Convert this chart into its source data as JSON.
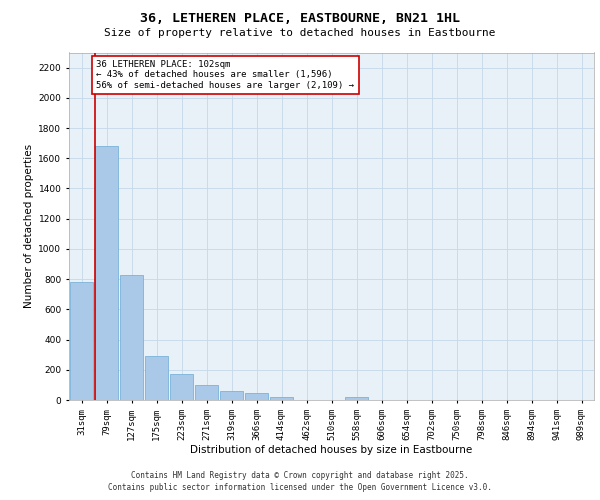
{
  "title_line1": "36, LETHEREN PLACE, EASTBOURNE, BN21 1HL",
  "title_line2": "Size of property relative to detached houses in Eastbourne",
  "xlabel": "Distribution of detached houses by size in Eastbourne",
  "ylabel": "Number of detached properties",
  "categories": [
    "31sqm",
    "79sqm",
    "127sqm",
    "175sqm",
    "223sqm",
    "271sqm",
    "319sqm",
    "366sqm",
    "414sqm",
    "462sqm",
    "510sqm",
    "558sqm",
    "606sqm",
    "654sqm",
    "702sqm",
    "750sqm",
    "798sqm",
    "846sqm",
    "894sqm",
    "941sqm",
    "989sqm"
  ],
  "values": [
    780,
    1680,
    830,
    290,
    170,
    100,
    60,
    45,
    18,
    0,
    0,
    18,
    0,
    0,
    0,
    0,
    0,
    0,
    0,
    0,
    0
  ],
  "bar_color": "#aac9e8",
  "bar_edge_color": "#6aaad4",
  "grid_color": "#c5d9ea",
  "background_color": "#e8f0f8",
  "annotation_text": "36 LETHEREN PLACE: 102sqm\n← 43% of detached houses are smaller (1,596)\n56% of semi-detached houses are larger (2,109) →",
  "annotation_box_color": "#ffffff",
  "annotation_box_edge": "#cc0000",
  "vline_color": "#cc0000",
  "vline_x_index": 1,
  "ylim": [
    0,
    2300
  ],
  "yticks": [
    0,
    200,
    400,
    600,
    800,
    1000,
    1200,
    1400,
    1600,
    1800,
    2000,
    2200
  ],
  "footer_line1": "Contains HM Land Registry data © Crown copyright and database right 2025.",
  "footer_line2": "Contains public sector information licensed under the Open Government Licence v3.0.",
  "title_fontsize": 9.5,
  "subtitle_fontsize": 8,
  "tick_fontsize": 6.5,
  "ylabel_fontsize": 7.5,
  "xlabel_fontsize": 7.5,
  "annotation_fontsize": 6.5,
  "footer_fontsize": 5.5
}
